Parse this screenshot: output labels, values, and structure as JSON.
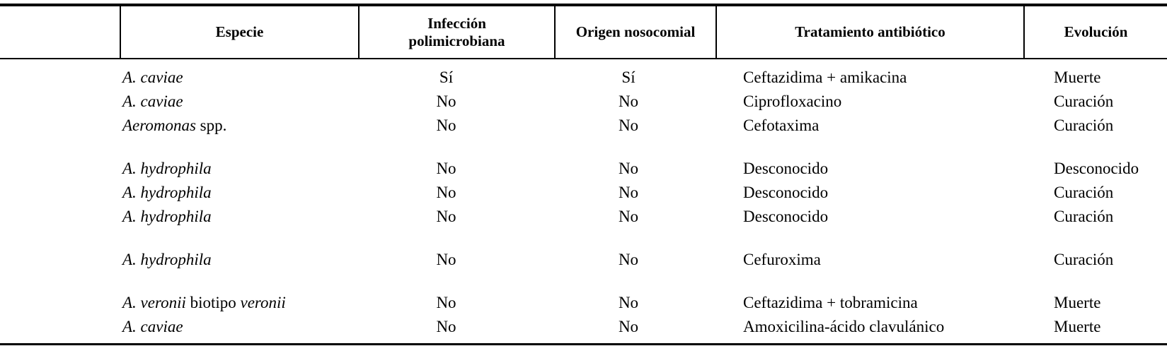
{
  "table": {
    "columns": [
      {
        "key": "blank",
        "label": ""
      },
      {
        "key": "especie",
        "label": "Especie"
      },
      {
        "key": "infeccion",
        "label": "Infección polimicrobiana"
      },
      {
        "key": "origen",
        "label": "Origen nosocomial"
      },
      {
        "key": "tratamiento",
        "label": "Tratamiento antibiótico"
      },
      {
        "key": "evolucion",
        "label": "Evolución"
      }
    ],
    "groups": [
      {
        "rows": [
          {
            "especie": [
              {
                "text": "A. caviae",
                "italic": true
              }
            ],
            "infeccion": "Sí",
            "origen": "Sí",
            "tratamiento": "Ceftazidima + amikacina",
            "evolucion": "Muerte"
          },
          {
            "especie": [
              {
                "text": "A. caviae",
                "italic": true
              }
            ],
            "infeccion": "No",
            "origen": "No",
            "tratamiento": "Ciprofloxacino",
            "evolucion": "Curación"
          },
          {
            "especie": [
              {
                "text": "Aeromonas",
                "italic": true
              },
              {
                "text": " spp.",
                "italic": false
              }
            ],
            "infeccion": "No",
            "origen": "No",
            "tratamiento": "Cefotaxima",
            "evolucion": "Curación"
          }
        ]
      },
      {
        "rows": [
          {
            "especie": [
              {
                "text": "A. hydrophila",
                "italic": true
              }
            ],
            "infeccion": "No",
            "origen": "No",
            "tratamiento": "Desconocido",
            "evolucion": "Desconocido"
          },
          {
            "especie": [
              {
                "text": "A. hydrophila",
                "italic": true
              }
            ],
            "infeccion": "No",
            "origen": "No",
            "tratamiento": "Desconocido",
            "evolucion": "Curación"
          },
          {
            "especie": [
              {
                "text": "A. hydrophila",
                "italic": true
              }
            ],
            "infeccion": "No",
            "origen": "No",
            "tratamiento": "Desconocido",
            "evolucion": "Curación"
          }
        ]
      },
      {
        "rows": [
          {
            "especie": [
              {
                "text": "A. hydrophila",
                "italic": true
              }
            ],
            "infeccion": "No",
            "origen": "No",
            "tratamiento": "Cefuroxima",
            "evolucion": "Curación"
          }
        ]
      },
      {
        "rows": [
          {
            "especie": [
              {
                "text": "A. veronii",
                "italic": true
              },
              {
                "text": " biotipo ",
                "italic": false
              },
              {
                "text": "veronii",
                "italic": true
              }
            ],
            "infeccion": "No",
            "origen": "No",
            "tratamiento": "Ceftazidima + tobramicina",
            "evolucion": "Muerte"
          },
          {
            "especie": [
              {
                "text": "A. caviae",
                "italic": true
              }
            ],
            "infeccion": "No",
            "origen": "No",
            "tratamiento": "Amoxicilina-ácido clavulánico",
            "evolucion": "Muerte"
          }
        ]
      }
    ],
    "colors": {
      "rule": "#000000",
      "text": "#000000",
      "background": "#ffffff"
    }
  }
}
